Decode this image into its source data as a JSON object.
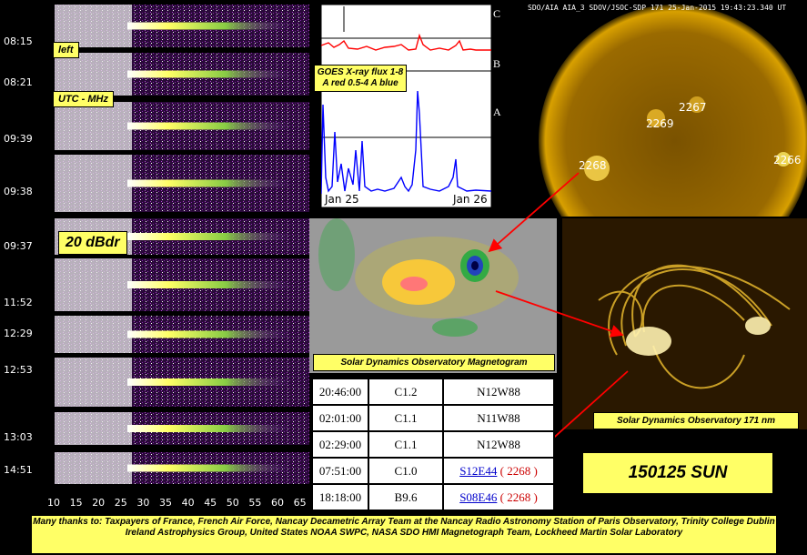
{
  "spectrogram": {
    "time_labels": [
      "08:15",
      "08:21",
      "09:39",
      "09:38",
      "09:37",
      "11:52",
      "12:29",
      "12:53",
      "13:03",
      "14:51"
    ],
    "freq_ticks": [
      "10",
      "15",
      "20",
      "25",
      "30",
      "35",
      "40",
      "45",
      "50",
      "55",
      "60",
      "65"
    ],
    "label_left": "left",
    "label_units": "UTC - MHz",
    "label_level": "20 dBdr"
  },
  "goes": {
    "label": "GOES X-ray flux 1-8 A red 0.5-4 A blue",
    "classes": [
      "C",
      "B",
      "A"
    ],
    "date_start": "Jan 25",
    "date_end": "Jan 26",
    "colors": {
      "long": "#ff0000",
      "short": "#0000ff"
    }
  },
  "sun": {
    "header": "SDO/AIA AIA_3 SDOV/JSOC-SDP 171 25-Jan-2015 19:43:23.340 UT",
    "regions": [
      "2267",
      "2269",
      "2268",
      "2266"
    ]
  },
  "magnetogram": {
    "label": "Solar Dynamics Observatory Magnetogram"
  },
  "loops": {
    "label": "Solar Dynamics Observatory 171 nm"
  },
  "flares": [
    {
      "time": "20:46:00",
      "class": "C1.2",
      "location": "N12W88",
      "region": ""
    },
    {
      "time": "02:01:00",
      "class": "C1.1",
      "location": "N11W88",
      "region": ""
    },
    {
      "time": "02:29:00",
      "class": "C1.1",
      "location": "N12W88",
      "region": ""
    },
    {
      "time": "07:51:00",
      "class": "C1.0",
      "location": "S12E44",
      "region": "( 2268 )"
    },
    {
      "time": "18:18:00",
      "class": "B9.6",
      "location": "S08E46",
      "region": "( 2268 )"
    }
  ],
  "title": "150125 SUN",
  "footer": "Many thanks to: Taxpayers of France, French Air Force, Nancay Decametric Array Team at the Nancay Radio Astronomy Station of Paris Observatory, Trinity College Dublin Ireland Astrophysics Group, United States NOAA SWPC, NASA SDO HMI Magnetograph Team, Lockheed Martin Solar Laboratory"
}
